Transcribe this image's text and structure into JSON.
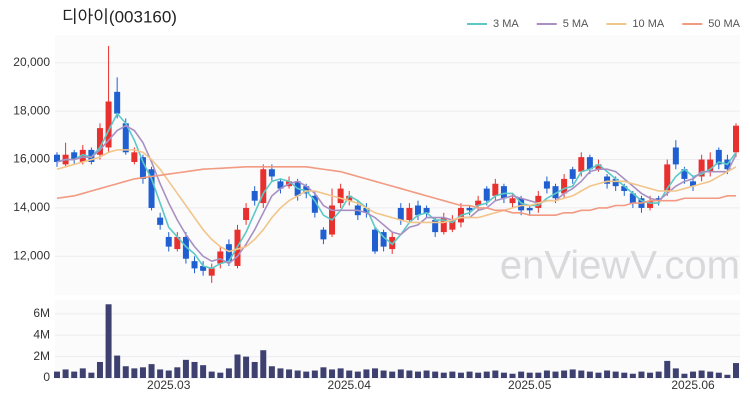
{
  "chart_data": [
    {
      "type": "candlestick",
      "title": "디아이(003160)",
      "watermark": "enViewV.com",
      "up_color": "#e8312f",
      "down_color": "#1f5fd1",
      "grid": true,
      "legend_position": "top-right",
      "ylim": [
        10400,
        21150
      ],
      "yticks": [
        {
          "value": 12000,
          "label": "12,000"
        },
        {
          "value": 14000,
          "label": "14,000"
        },
        {
          "value": 16000,
          "label": "16,000"
        },
        {
          "value": 18000,
          "label": "18,000"
        },
        {
          "value": 20000,
          "label": "20,000"
        }
      ],
      "open": [
        16200,
        15800,
        16300,
        15900,
        16400,
        16200,
        16500,
        18800,
        17500,
        15900,
        16100,
        15600,
        13600,
        12800,
        12300,
        12800,
        11800,
        11600,
        11200,
        11700,
        12500,
        11600,
        13500,
        14700,
        14200,
        15600,
        15100,
        14900,
        15100,
        14900,
        14500,
        13100,
        12900,
        14200,
        14300,
        14100,
        14000,
        13100,
        13000,
        12300,
        14000,
        13500,
        14100,
        14000,
        13500,
        13000,
        13100,
        13400,
        14000,
        14100,
        14800,
        14500,
        14900,
        14200,
        14400,
        14000,
        14000,
        15100,
        14900,
        14600,
        15600,
        15500,
        16100,
        15600,
        15300,
        15200,
        14900,
        14600,
        14400,
        14000,
        14400,
        14700,
        16500,
        15600,
        15100,
        15300,
        15500,
        16400,
        16000,
        16300
      ],
      "high": [
        16300,
        16700,
        16400,
        16600,
        16500,
        17500,
        20700,
        19400,
        17700,
        16500,
        16200,
        15700,
        13800,
        13000,
        13000,
        13000,
        12000,
        11800,
        11700,
        12400,
        12700,
        13300,
        14200,
        14900,
        15800,
        15800,
        15200,
        15300,
        15200,
        15000,
        14700,
        13200,
        14800,
        15000,
        14700,
        14300,
        14200,
        13200,
        13100,
        13000,
        14200,
        14200,
        14300,
        14100,
        13600,
        13800,
        13700,
        14200,
        14100,
        14500,
        14900,
        15200,
        15000,
        14600,
        14500,
        14100,
        14700,
        15300,
        15000,
        15400,
        15700,
        16300,
        16200,
        16000,
        15400,
        15300,
        15000,
        14700,
        14500,
        14500,
        14500,
        16000,
        16800,
        15700,
        15300,
        16200,
        16300,
        16500,
        16200,
        17500
      ],
      "low": [
        15700,
        15700,
        15800,
        15800,
        15800,
        16000,
        16300,
        17700,
        16200,
        15800,
        15000,
        13900,
        13100,
        12200,
        12200,
        11700,
        11300,
        11200,
        10900,
        11500,
        11600,
        11500,
        13300,
        14100,
        14000,
        15100,
        14600,
        14800,
        14300,
        14400,
        13600,
        12500,
        12800,
        14000,
        14100,
        13500,
        13600,
        12100,
        12200,
        12100,
        13300,
        13400,
        13500,
        13600,
        12800,
        12900,
        13000,
        13200,
        13700,
        13900,
        14100,
        14300,
        14200,
        14000,
        13700,
        13700,
        13800,
        14600,
        14200,
        14400,
        15000,
        15300,
        15400,
        15500,
        14800,
        14700,
        14500,
        14000,
        13800,
        13900,
        14100,
        14500,
        15600,
        15000,
        14700,
        15100,
        15300,
        15600,
        15400,
        16100
      ],
      "close": [
        15900,
        16200,
        16000,
        16400,
        15900,
        17300,
        18400,
        17900,
        16300,
        16300,
        15200,
        14000,
        13300,
        12400,
        12800,
        11900,
        11500,
        11400,
        11500,
        12200,
        11800,
        13100,
        14000,
        14300,
        15600,
        15300,
        14800,
        15100,
        14500,
        14600,
        13800,
        12700,
        14100,
        14800,
        14500,
        13700,
        13800,
        12200,
        12400,
        12800,
        13500,
        14000,
        13700,
        13800,
        13000,
        13600,
        13500,
        14000,
        13900,
        14300,
        14300,
        15000,
        14400,
        14400,
        13900,
        13900,
        14500,
        14800,
        14400,
        15200,
        15200,
        16100,
        15600,
        15800,
        15000,
        14900,
        14700,
        14200,
        14000,
        14300,
        14300,
        15800,
        15800,
        15200,
        14900,
        16000,
        16000,
        15800,
        15600,
        17400
      ],
      "series": [
        {
          "name": "3 MA",
          "color": "#5cc9c6",
          "values": [
            15900,
            16000,
            16000,
            16200,
            16100,
            16500,
            17200,
            17900,
            17500,
            16800,
            15900,
            15200,
            14200,
            13200,
            12800,
            12400,
            12100,
            11600,
            11500,
            11700,
            11800,
            12400,
            13000,
            13800,
            14600,
            15100,
            15200,
            15100,
            14800,
            14700,
            14300,
            13700,
            13500,
            13900,
            14500,
            14300,
            14000,
            13200,
            12800,
            12500,
            12900,
            13400,
            13700,
            13800,
            13500,
            13500,
            13400,
            13700,
            13800,
            14100,
            14200,
            14500,
            14600,
            14600,
            14200,
            14100,
            14100,
            14400,
            14600,
            14800,
            14900,
            15500,
            15600,
            15800,
            15500,
            15200,
            14900,
            14600,
            14300,
            14200,
            14200,
            14800,
            15300,
            15600,
            15300,
            15400,
            15600,
            15900,
            15800,
            16300
          ]
        },
        {
          "name": "5 MA",
          "color": "#a891c2",
          "values": [
            15900,
            16000,
            16000,
            16100,
            16100,
            16400,
            16800,
            17200,
            17400,
            17200,
            16700,
            15900,
            15000,
            14200,
            13500,
            12900,
            12400,
            12000,
            11800,
            11900,
            11700,
            12000,
            12500,
            13100,
            13800,
            14500,
            14800,
            15000,
            15100,
            14900,
            14600,
            14100,
            13900,
            13900,
            13900,
            13900,
            13800,
            13600,
            13300,
            13000,
            12900,
            13200,
            13300,
            13600,
            13600,
            13600,
            13500,
            13600,
            13600,
            13900,
            14000,
            14300,
            14400,
            14500,
            14400,
            14300,
            14200,
            14300,
            14300,
            14600,
            14800,
            15100,
            15500,
            15600,
            15600,
            15500,
            15200,
            14900,
            14600,
            14400,
            14300,
            14600,
            14900,
            15100,
            15200,
            15500,
            15500,
            15500,
            15500,
            16200
          ]
        },
        {
          "name": "10 MA",
          "color": "#f2c58a",
          "values": [
            15600,
            15700,
            15800,
            15900,
            16000,
            16100,
            16300,
            16400,
            16400,
            16400,
            16300,
            16000,
            15600,
            15100,
            14600,
            14100,
            13600,
            13100,
            12700,
            12400,
            12200,
            12300,
            12400,
            12700,
            13100,
            13600,
            14000,
            14300,
            14500,
            14700,
            14700,
            14600,
            14500,
            14400,
            14300,
            14200,
            14000,
            13800,
            13700,
            13600,
            13500,
            13400,
            13400,
            13400,
            13400,
            13400,
            13500,
            13600,
            13600,
            13600,
            13700,
            13800,
            13900,
            14000,
            14100,
            14100,
            14200,
            14300,
            14300,
            14400,
            14500,
            14700,
            14900,
            15000,
            15100,
            15100,
            15100,
            15000,
            14900,
            14800,
            14700,
            14700,
            14700,
            14800,
            14900,
            15000,
            15100,
            15300,
            15500,
            15700
          ]
        },
        {
          "name": "50 MA",
          "color": "#f29a82",
          "values": [
            14400,
            14450,
            14500,
            14600,
            14700,
            14800,
            14900,
            15000,
            15100,
            15200,
            15250,
            15300,
            15350,
            15400,
            15450,
            15500,
            15550,
            15600,
            15620,
            15640,
            15660,
            15680,
            15700,
            15700,
            15700,
            15700,
            15700,
            15700,
            15700,
            15700,
            15650,
            15600,
            15550,
            15500,
            15400,
            15300,
            15200,
            15100,
            15000,
            14900,
            14800,
            14700,
            14600,
            14500,
            14400,
            14300,
            14200,
            14100,
            14100,
            14000,
            14000,
            13900,
            13900,
            13800,
            13800,
            13700,
            13700,
            13700,
            13700,
            13800,
            13800,
            13900,
            13900,
            14000,
            14000,
            14100,
            14100,
            14200,
            14200,
            14300,
            14300,
            14300,
            14300,
            14400,
            14400,
            14400,
            14400,
            14400,
            14500,
            14500
          ]
        }
      ]
    },
    {
      "type": "bar",
      "color": "#3e4170",
      "ylim": [
        0,
        7300000
      ],
      "yticks": [
        0,
        {
          "value": 2000000,
          "label": "2M"
        },
        {
          "value": 4000000,
          "label": "4M"
        },
        {
          "value": 6000000,
          "label": "6M"
        }
      ],
      "categories": [
        null,
        null,
        null,
        null,
        null,
        null,
        null,
        null,
        null,
        null,
        null,
        null,
        null,
        "2025.03",
        null,
        null,
        null,
        null,
        null,
        null,
        null,
        null,
        null,
        null,
        null,
        null,
        null,
        null,
        null,
        null,
        null,
        null,
        null,
        null,
        "2025.04",
        null,
        null,
        null,
        null,
        null,
        null,
        null,
        null,
        null,
        null,
        null,
        null,
        null,
        null,
        null,
        null,
        null,
        null,
        null,
        null,
        "2025.05",
        null,
        null,
        null,
        null,
        null,
        null,
        null,
        null,
        null,
        null,
        null,
        null,
        null,
        null,
        null,
        null,
        null,
        null,
        "2025.06",
        null,
        null,
        null,
        null,
        null
      ],
      "values": [
        600000,
        800000,
        600000,
        900000,
        500000,
        1500000,
        6900000,
        2100000,
        1100000,
        900000,
        1000000,
        1300000,
        800000,
        700000,
        1000000,
        1700000,
        1500000,
        1200000,
        600000,
        500000,
        900000,
        2200000,
        2000000,
        1500000,
        2600000,
        1100000,
        900000,
        800000,
        700000,
        600000,
        700000,
        1000000,
        800000,
        900000,
        700000,
        600000,
        800000,
        900000,
        700000,
        600000,
        800000,
        700000,
        600000,
        700000,
        600000,
        500000,
        600000,
        500000,
        600000,
        500000,
        600000,
        700000,
        500000,
        400000,
        600000,
        500000,
        500000,
        700000,
        600000,
        700000,
        800000,
        700000,
        600000,
        500000,
        700000,
        600000,
        500000,
        400000,
        600000,
        500000,
        600000,
        1600000,
        900000,
        400000,
        600000,
        700000,
        600000,
        500000,
        300000,
        1400000
      ]
    }
  ]
}
